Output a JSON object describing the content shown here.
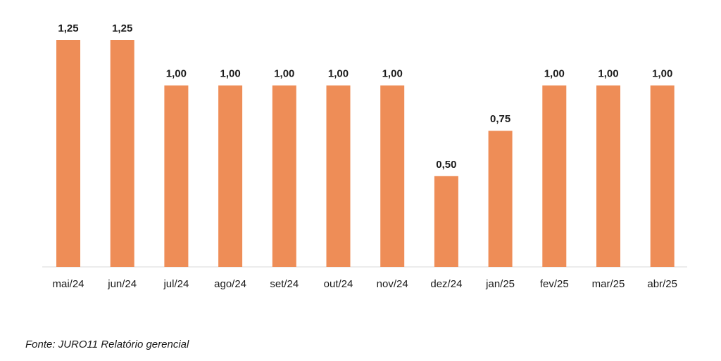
{
  "chart_data": {
    "type": "bar",
    "categories": [
      "mai/24",
      "jun/24",
      "jul/24",
      "ago/24",
      "set/24",
      "out/24",
      "nov/24",
      "dez/24",
      "jan/25",
      "fev/25",
      "mar/25",
      "abr/25"
    ],
    "values": [
      1.25,
      1.25,
      1.0,
      1.0,
      1.0,
      1.0,
      1.0,
      0.5,
      0.75,
      1.0,
      1.0,
      1.0
    ],
    "value_labels": [
      "1,25",
      "1,25",
      "1,00",
      "1,00",
      "1,00",
      "1,00",
      "1,00",
      "0,50",
      "0,75",
      "1,00",
      "1,00",
      "1,00"
    ],
    "ylim": [
      0,
      1.25
    ],
    "grid": false,
    "bar_color": "#EE8D57",
    "axis_color": "#D9D9D9"
  },
  "source_text": "Fonte: JURO11 Relatório gerencial"
}
